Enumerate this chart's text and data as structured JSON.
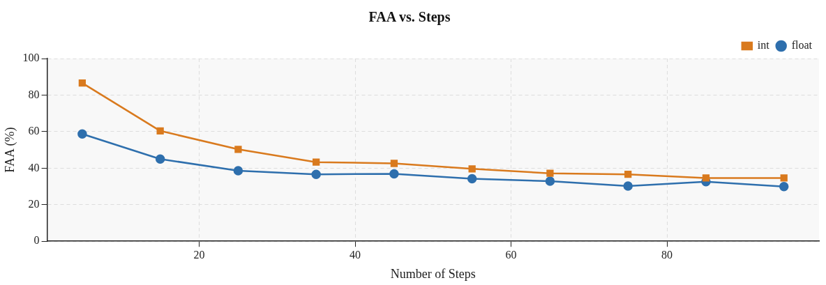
{
  "chart_data": {
    "type": "line",
    "title": "FAA vs. Steps",
    "xlabel": "Number of Steps",
    "ylabel": "FAA (%)",
    "x": [
      5,
      15,
      25,
      35,
      45,
      55,
      65,
      75,
      85,
      95
    ],
    "series": [
      {
        "name": "float",
        "color": "#2e6fad",
        "marker": "circle",
        "values": [
          58.7,
          45.0,
          38.6,
          36.6,
          36.9,
          34.2,
          32.9,
          30.2,
          32.6,
          29.9
        ]
      },
      {
        "name": "int",
        "color": "#d97a1e",
        "marker": "square",
        "values": [
          86.6,
          60.4,
          50.3,
          43.3,
          42.6,
          39.6,
          37.2,
          36.6,
          34.6,
          34.6
        ]
      }
    ],
    "xlim": [
      0.5,
      99.5
    ],
    "xticks": [
      20,
      40,
      60,
      80
    ],
    "ylim": [
      0,
      100
    ],
    "yticks": [
      0,
      20,
      40,
      60,
      80,
      100
    ],
    "grid": true,
    "legend": "top right",
    "line_style": "solid"
  }
}
